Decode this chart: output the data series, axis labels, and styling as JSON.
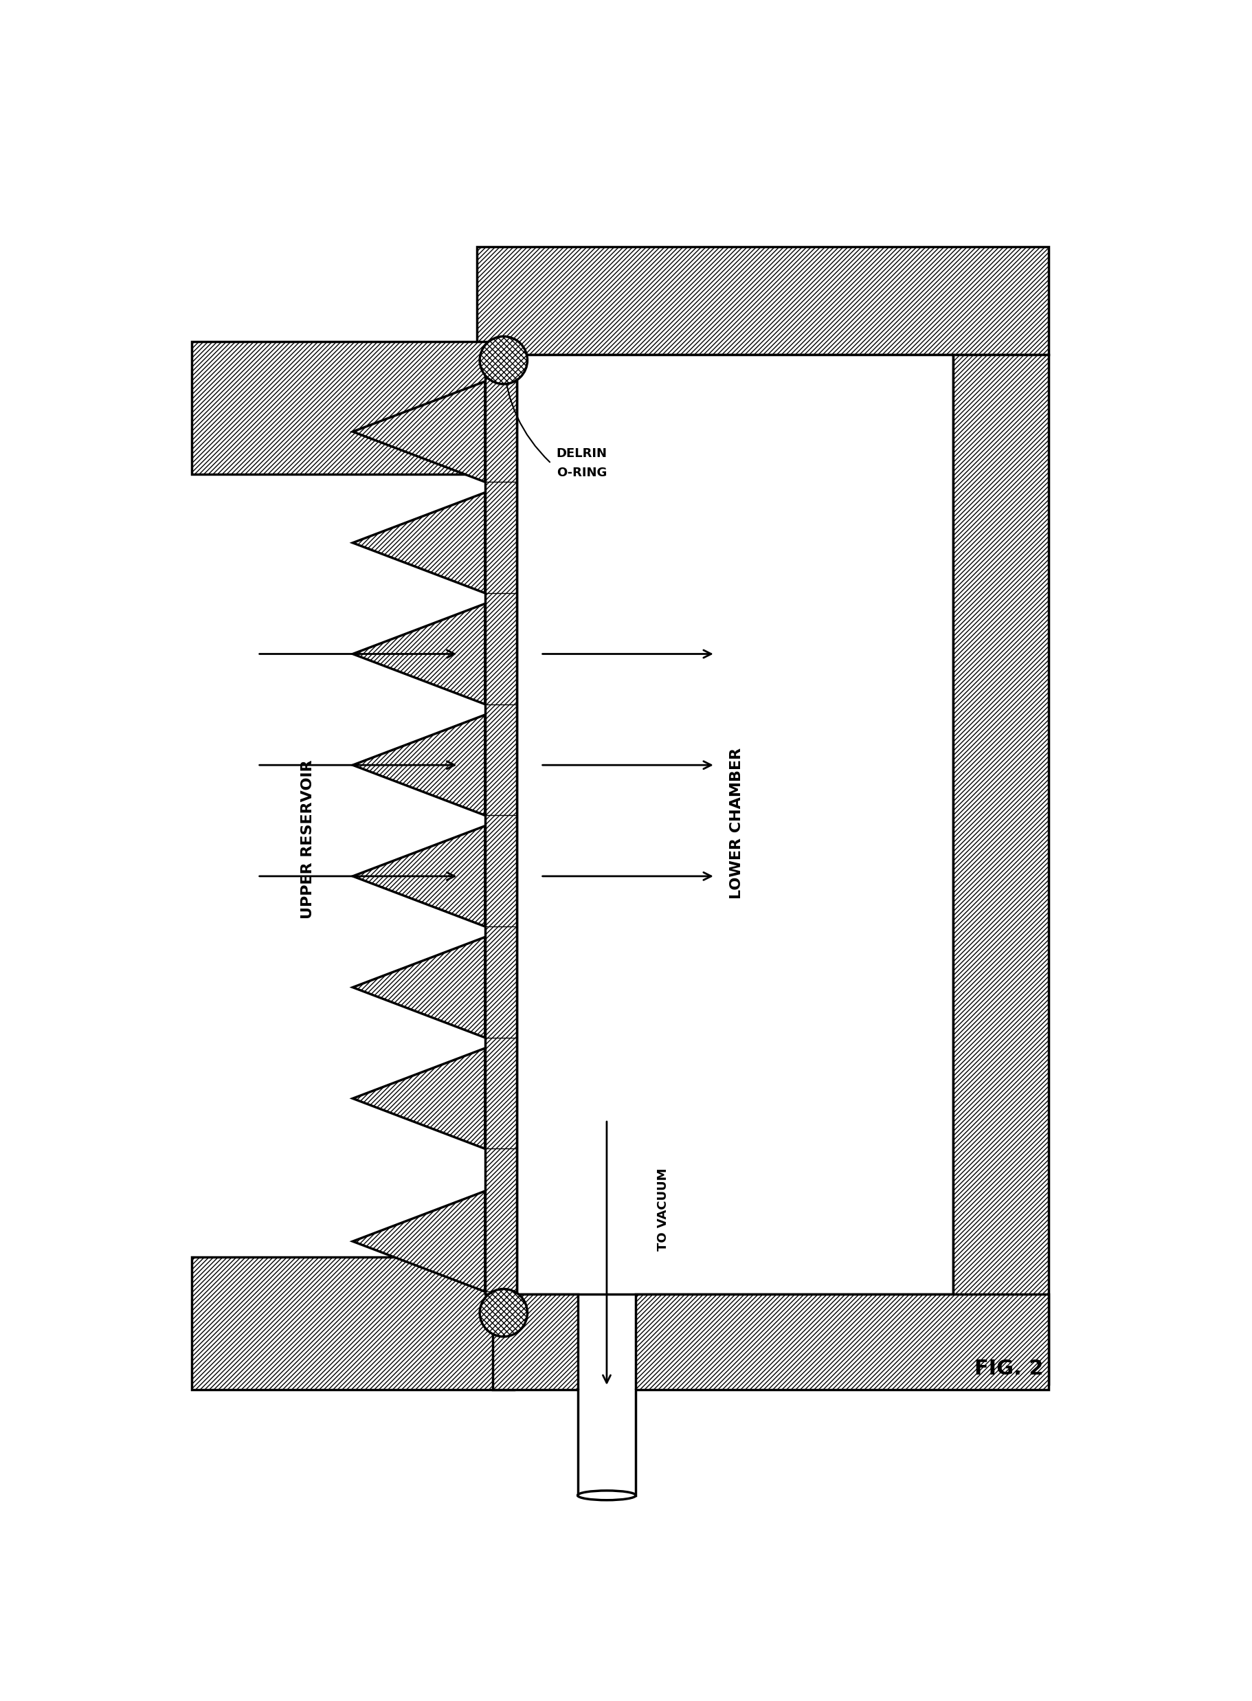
{
  "bg_color": "#ffffff",
  "line_color": "#000000",
  "fig_width": 18.22,
  "fig_height": 24.75,
  "title": "FIG. 2",
  "label_upper_reservoir": "UPPER RESERVOIR",
  "label_lower_chamber": "LOWER CHAMBER",
  "label_delrin": "DELRIN",
  "label_oring": "O-RING",
  "label_vacuum": "TO VACUUM",
  "hatch": "/////"
}
